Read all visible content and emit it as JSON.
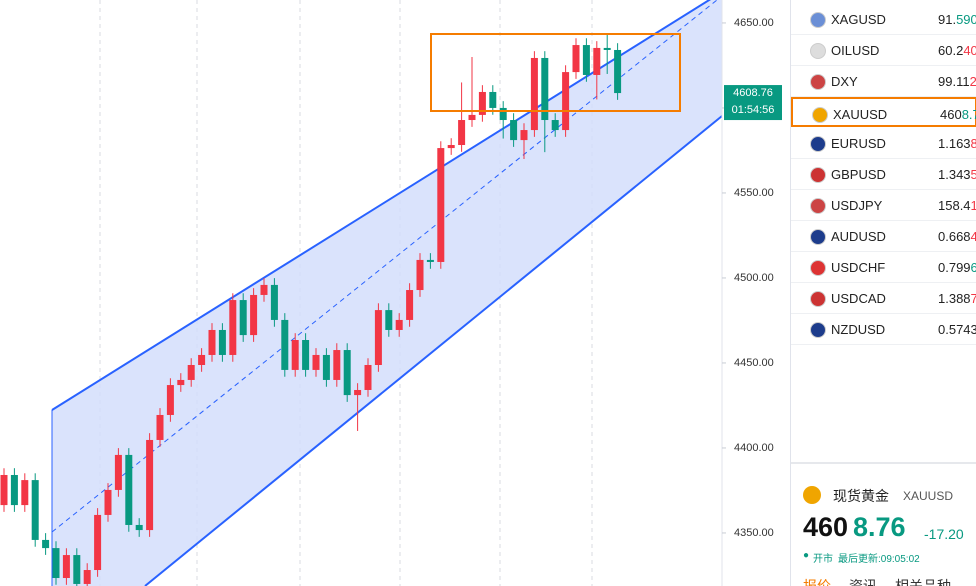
{
  "chart_data": {
    "type": "candlestick",
    "ylim": [
      4318.8,
      4663.5
    ],
    "yticks": [
      {
        "value": 4350,
        "label": "4350.00"
      },
      {
        "value": 4400,
        "label": "4400.00"
      },
      {
        "value": 4450,
        "label": "4450.00"
      },
      {
        "value": 4500,
        "label": "4500.00"
      },
      {
        "value": 4550,
        "label": "4550.00"
      },
      {
        "value": 4600,
        "label": "4600.00"
      },
      {
        "value": 4650,
        "label": "4650.00"
      }
    ],
    "up_color": "#f23645",
    "down_color": "#089981",
    "open": [
      4366.4,
      4384.1,
      4366.4,
      4381.1,
      4345.9,
      4341.1,
      4323.5,
      4337.0,
      4320.0,
      4328.2,
      4360.6,
      4375.3,
      4395.9,
      4354.7,
      4351.7,
      4404.7,
      4419.4,
      4437.0,
      4440.0,
      4448.8,
      4454.7,
      4469.4,
      4454.7,
      4487.0,
      4466.4,
      4490.0,
      4495.9,
      4475.3,
      4445.9,
      4463.5,
      4445.9,
      4454.7,
      4440.0,
      4457.6,
      4431.1,
      4434.1,
      4448.8,
      4481.1,
      4469.4,
      4475.3,
      4492.9,
      4510.6,
      4509.4,
      4576.4,
      4578.2,
      4592.9,
      4595.9,
      4609.4,
      4600.0,
      4592.9,
      4581.1,
      4587.0,
      4629.4,
      4592.9,
      4587.0,
      4621.1,
      4637.0,
      4619.4,
      4635.3,
      4634.1
    ],
    "high": [
      4388.1,
      4388.1,
      4385.1,
      4385.1,
      4349.9,
      4345.1,
      4341.0,
      4341.0,
      4332.2,
      4364.6,
      4379.3,
      4399.9,
      4399.9,
      4358.7,
      4408.7,
      4423.4,
      4441.0,
      4444.0,
      4452.8,
      4458.7,
      4473.4,
      4473.4,
      4491.0,
      4491.0,
      4494.0,
      4499.9,
      4499.9,
      4479.3,
      4467.5,
      4467.5,
      4458.7,
      4458.7,
      4461.6,
      4461.6,
      4438.1,
      4452.8,
      4485.1,
      4485.1,
      4479.3,
      4496.9,
      4514.6,
      4514.6,
      4580.4,
      4582.2,
      4615.0,
      4630.0,
      4613.4,
      4613.4,
      4604.0,
      4596.9,
      4591.0,
      4633.4,
      4633.4,
      4596.9,
      4625.1,
      4641.0,
      4641.0,
      4639.3,
      4643.0,
      4638.1
    ],
    "low": [
      4362.4,
      4362.4,
      4362.4,
      4341.9,
      4337.1,
      4319.5,
      4319.5,
      4316.0,
      4316.0,
      4324.2,
      4356.6,
      4371.3,
      4350.7,
      4347.7,
      4347.7,
      4400.7,
      4415.4,
      4433.0,
      4436.0,
      4444.8,
      4450.7,
      4450.7,
      4450.7,
      4462.4,
      4462.4,
      4486.0,
      4471.3,
      4441.9,
      4441.9,
      4441.9,
      4441.9,
      4436.0,
      4436.0,
      4427.1,
      4410.0,
      4430.1,
      4444.8,
      4465.4,
      4465.4,
      4471.3,
      4488.9,
      4505.4,
      4505.4,
      4572.4,
      4574.2,
      4588.9,
      4591.9,
      4596.0,
      4582.0,
      4577.1,
      4570.0,
      4583.0,
      4574.0,
      4583.0,
      4583.0,
      4617.1,
      4615.4,
      4605.0,
      4620.0,
      4604.76
    ],
    "close": [
      4384.1,
      4366.4,
      4381.1,
      4345.9,
      4341.1,
      4323.5,
      4337.0,
      4320.0,
      4328.2,
      4360.6,
      4375.3,
      4395.9,
      4354.7,
      4351.7,
      4404.7,
      4419.4,
      4437.0,
      4440.0,
      4448.8,
      4454.7,
      4469.4,
      4454.7,
      4487.0,
      4466.4,
      4490.0,
      4495.9,
      4475.3,
      4445.9,
      4463.5,
      4445.9,
      4454.7,
      4440.0,
      4457.6,
      4431.1,
      4434.1,
      4448.8,
      4481.1,
      4469.4,
      4475.3,
      4492.9,
      4510.6,
      4509.4,
      4576.4,
      4578.2,
      4592.9,
      4595.9,
      4609.4,
      4600.0,
      4592.9,
      4581.1,
      4587.0,
      4629.4,
      4592.9,
      4587.0,
      4621.1,
      4637.0,
      4619.4,
      4635.3,
      4634.1,
      4608.76
    ],
    "last_price": {
      "value": 4608.76,
      "label": "4608.76"
    },
    "timer": "01:54:56"
  },
  "watchlist": [
    {
      "symbol": "XAGUSD",
      "price_head": "91.",
      "price_tail": "590",
      "tail_color": "#089981"
    },
    {
      "symbol": "OILUSD",
      "price_head": "60.2",
      "price_tail": "40",
      "tail_color": "#f23645"
    },
    {
      "symbol": "DXY",
      "price_head": "99.11",
      "price_tail": "2",
      "tail_color": "#f23645"
    },
    {
      "symbol": "XAUUSD",
      "price_head": "460",
      "price_tail": "8.76",
      "tail_color": "#089981",
      "selected": true
    },
    {
      "symbol": "EURUSD",
      "price_head": "1.163",
      "price_tail": "8",
      "tail_color": "#f23645"
    },
    {
      "symbol": "GBPUSD",
      "price_head": "1.343",
      "price_tail": "5",
      "tail_color": "#f23645"
    },
    {
      "symbol": "USDJPY",
      "price_head": "158.4",
      "price_tail": "19",
      "tail_color": "#f23645"
    },
    {
      "symbol": "AUDUSD",
      "price_head": "0.668",
      "price_tail": "4",
      "tail_color": "#f23645"
    },
    {
      "symbol": "USDCHF",
      "price_head": "0.799",
      "price_tail": "6",
      "tail_color": "#089981"
    },
    {
      "symbol": "USDCAD",
      "price_head": "1.388",
      "price_tail": "7",
      "tail_color": "#f23645"
    },
    {
      "symbol": "NZDUSD",
      "price_head": "0.5743"
    }
  ],
  "quote": {
    "name": "现货黄金",
    "symbol": "XAUUSD",
    "price_head": "460",
    "price_tail": "8.76",
    "change": "-17.20",
    "status": "开市",
    "update": "最后更新:09:05:02",
    "tabs": [
      "报价",
      "资讯",
      "相关品种"
    ]
  }
}
